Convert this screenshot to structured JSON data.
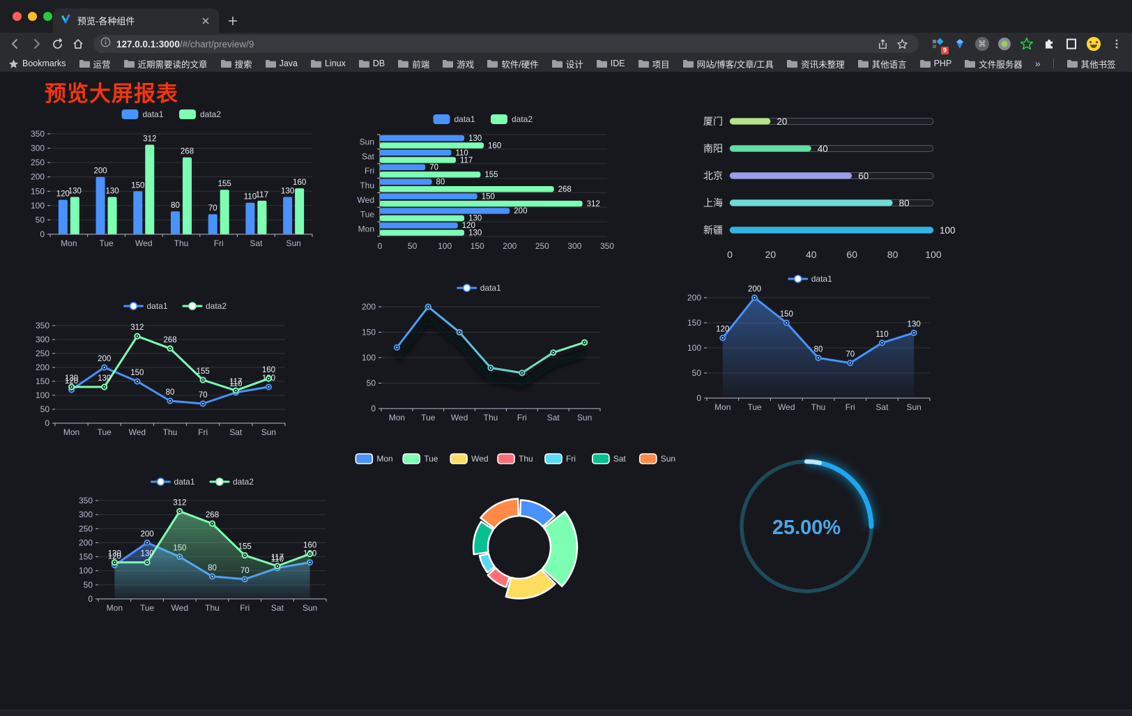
{
  "browser": {
    "tab": {
      "title": "预览-各种组件"
    },
    "address": {
      "host": "127.0.0.1:3000",
      "path": "/#/chart/preview/9"
    },
    "extensions_badge": "9",
    "icons": {
      "cmd_glyph": "⌘",
      "overflow_glyph": "»"
    },
    "bookmarks_bar": {
      "star_label": "Bookmarks",
      "folders": [
        "运营",
        "近期需要读的文章",
        "搜索",
        "Java",
        "Linux",
        "DB",
        "前端",
        "游戏",
        "软件/硬件",
        "设计",
        "IDE",
        "项目",
        "网站/博客/文章/工具",
        "资讯未整理",
        "其他语言",
        "PHP",
        "文件服务器"
      ],
      "overflow": "»",
      "other": "其他书签"
    }
  },
  "page": {
    "title": "预览大屏报表",
    "title_color": "#f5350e"
  },
  "theme": {
    "background": "#17181d",
    "axis_label": "#b9b8ce",
    "grid_line": "#32323d",
    "axis_line": "#b9b8ce",
    "value_label": "#eef0f6",
    "legend_text": "#cfced9",
    "series_blue": "#4992ff",
    "series_green": "#7cffb2",
    "gauge_track": "#1d4b59",
    "gauge_arc": "#1ba7ee",
    "gauge_text": "#4ba7e8"
  },
  "chart_data": [
    {
      "id": "c1",
      "type": "bar",
      "title": "",
      "categories": [
        "Mon",
        "Tue",
        "Wed",
        "Thu",
        "Fri",
        "Sat",
        "Sun"
      ],
      "series": [
        {
          "name": "data1",
          "color": "#4992ff",
          "values": [
            120,
            200,
            150,
            80,
            70,
            110,
            130
          ]
        },
        {
          "name": "data2",
          "color": "#7cffb2",
          "values": [
            130,
            130,
            312,
            268,
            155,
            117,
            160
          ]
        }
      ],
      "ylim": [
        0,
        350
      ],
      "yticks": [
        0,
        50,
        100,
        150,
        200,
        250,
        300,
        350
      ],
      "grid": true,
      "legend_position": "top"
    },
    {
      "id": "c2",
      "type": "bar",
      "orientation": "horizontal",
      "categories": [
        "Mon",
        "Tue",
        "Wed",
        "Thu",
        "Fri",
        "Sat",
        "Sun"
      ],
      "display_order_top_to_bottom": [
        "Sun",
        "Sat",
        "Fri",
        "Thu",
        "Wed",
        "Tue",
        "Mon"
      ],
      "series": [
        {
          "name": "data1",
          "color": "#4992ff",
          "values": [
            120,
            200,
            150,
            80,
            70,
            110,
            130
          ]
        },
        {
          "name": "data2",
          "color": "#7cffb2",
          "values": [
            130,
            130,
            312,
            268,
            155,
            117,
            160
          ]
        }
      ],
      "xlim": [
        0,
        350
      ],
      "xticks": [
        0,
        50,
        100,
        150,
        200,
        250,
        300,
        350
      ],
      "grid": true,
      "legend_position": "top"
    },
    {
      "id": "c3",
      "type": "bar",
      "subtype": "progress",
      "categories": [
        "厦门",
        "南阳",
        "北京",
        "上海",
        "新疆"
      ],
      "values": [
        20,
        40,
        60,
        80,
        100
      ],
      "colors": [
        "#b5e487",
        "#5fdfa4",
        "#989fe8",
        "#6edcd8",
        "#2fb5e5"
      ],
      "xlim": [
        0,
        100
      ],
      "xticks": [
        0,
        20,
        40,
        60,
        80,
        100
      ]
    },
    {
      "id": "c4",
      "type": "line",
      "categories": [
        "Mon",
        "Tue",
        "Wed",
        "Thu",
        "Fri",
        "Sat",
        "Sun"
      ],
      "series": [
        {
          "name": "data1",
          "color": "#4992ff",
          "values": [
            120,
            200,
            150,
            80,
            70,
            110,
            130
          ]
        },
        {
          "name": "data2",
          "color": "#7cffb2",
          "values": [
            130,
            130,
            312,
            268,
            155,
            117,
            160
          ]
        }
      ],
      "ylim": [
        0,
        350
      ],
      "yticks": [
        0,
        50,
        100,
        150,
        200,
        250,
        300,
        350
      ],
      "grid": true,
      "legend_position": "top",
      "point_labels": true
    },
    {
      "id": "c5",
      "type": "line",
      "line_gradient": [
        "#4992ff",
        "#7cffb2"
      ],
      "categories": [
        "Mon",
        "Tue",
        "Wed",
        "Thu",
        "Fri",
        "Sat",
        "Sun"
      ],
      "series": [
        {
          "name": "data1",
          "color": "#4992ff",
          "values": [
            120,
            200,
            150,
            80,
            70,
            110,
            130
          ]
        }
      ],
      "ylim": [
        0,
        200
      ],
      "yticks": [
        0,
        50,
        100,
        150,
        200
      ],
      "grid": true,
      "legend_position": "top",
      "point_labels": false,
      "shadow": true
    },
    {
      "id": "c6",
      "type": "area",
      "categories": [
        "Mon",
        "Tue",
        "Wed",
        "Thu",
        "Fri",
        "Sat",
        "Sun"
      ],
      "series": [
        {
          "name": "data1",
          "color": "#4992ff",
          "values": [
            120,
            200,
            150,
            80,
            70,
            110,
            130
          ]
        }
      ],
      "ylim": [
        0,
        200
      ],
      "yticks": [
        0,
        50,
        100,
        150,
        200
      ],
      "grid": true,
      "legend_position": "top",
      "point_labels": true
    },
    {
      "id": "c7",
      "type": "area",
      "categories": [
        "Mon",
        "Tue",
        "Wed",
        "Thu",
        "Fri",
        "Sat",
        "Sun"
      ],
      "series": [
        {
          "name": "data1",
          "color": "#4992ff",
          "values": [
            120,
            200,
            150,
            80,
            70,
            110,
            130
          ]
        },
        {
          "name": "data2",
          "color": "#7cffb2",
          "values": [
            130,
            130,
            312,
            268,
            155,
            117,
            160
          ]
        }
      ],
      "ylim": [
        0,
        350
      ],
      "yticks": [
        0,
        50,
        100,
        150,
        200,
        250,
        300,
        350
      ],
      "grid": true,
      "legend_position": "top",
      "point_labels": true
    },
    {
      "id": "c8",
      "type": "pie",
      "subtype": "rose-donut",
      "categories": [
        "Mon",
        "Tue",
        "Wed",
        "Thu",
        "Fri",
        "Sat",
        "Sun"
      ],
      "values": [
        120,
        200,
        150,
        80,
        70,
        110,
        130
      ],
      "colors": [
        "#4992ff",
        "#7cffb2",
        "#fddd60",
        "#ff6e76",
        "#58d9f9",
        "#05c091",
        "#ff8a45"
      ],
      "legend_position": "top"
    },
    {
      "id": "c9",
      "type": "gauge",
      "subtype": "progress-ring",
      "percent": 25,
      "value_label": "25.00%",
      "arc_color": "#1ba7ee",
      "track_color": "#1d4b59",
      "text_color": "#4ba7e8"
    }
  ]
}
